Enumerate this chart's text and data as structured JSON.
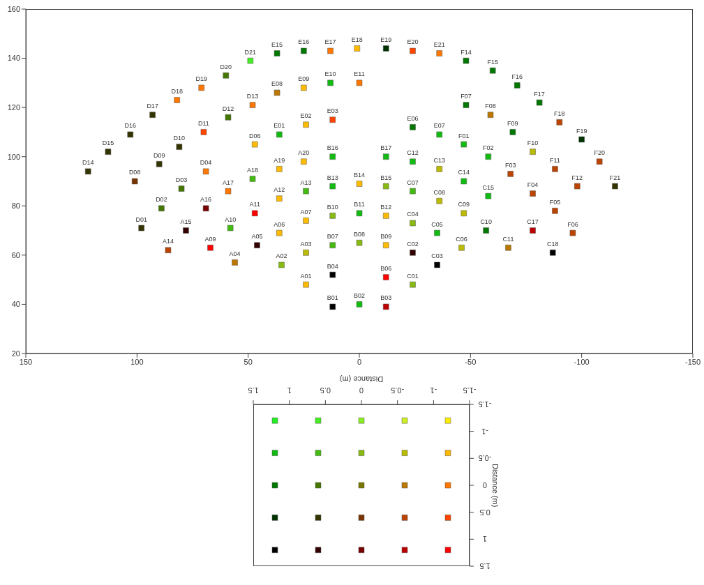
{
  "chart_data": [
    {
      "type": "scatter",
      "marker": "square",
      "xlim": [
        150,
        -150
      ],
      "xticks": [
        150,
        100,
        50,
        0,
        -50,
        -100,
        -150
      ],
      "ylim": [
        20,
        160
      ],
      "yticks": [
        20,
        40,
        60,
        80,
        100,
        120,
        140,
        160
      ],
      "value_labels": [
        "A01",
        "A02",
        "A03",
        "A04",
        "A05",
        "A06",
        "A07",
        "A09",
        "A10",
        "A11",
        "A12",
        "A13",
        "A14",
        "A15",
        "A16",
        "A17",
        "A18",
        "A19",
        "A20",
        "B01",
        "B02",
        "B03",
        "B04",
        "B06",
        "B07",
        "B08",
        "B09",
        "B10",
        "B11",
        "B12",
        "B13",
        "B14",
        "B15",
        "B16",
        "B17",
        "C01",
        "C02",
        "C03",
        "C04",
        "C05",
        "C06",
        "C07",
        "C08",
        "C09",
        "C10",
        "C11",
        "C12",
        "C13",
        "C14",
        "C15",
        "C17",
        "C18",
        "D01",
        "D02",
        "D03",
        "D04",
        "D06",
        "D08",
        "D09",
        "D10",
        "D11",
        "D12",
        "D13",
        "D14",
        "D15",
        "D16",
        "D17",
        "D18",
        "D19",
        "D20",
        "D21",
        "E01",
        "E02",
        "E03",
        "E06",
        "E07",
        "E08",
        "E09",
        "E10",
        "E11",
        "E15",
        "E16",
        "E17",
        "E18",
        "E19",
        "E20",
        "E21",
        "F01",
        "F02",
        "F03",
        "F04",
        "F05",
        "F06",
        "F07",
        "F08",
        "F09",
        "F10",
        "F11",
        "F12",
        "F14",
        "F15",
        "F16",
        "F17",
        "F18",
        "F19",
        "F20",
        "F21"
      ],
      "x": [
        24,
        35,
        24,
        56,
        46,
        36,
        24,
        67,
        58,
        47,
        36,
        24,
        86,
        78,
        69,
        59,
        48,
        36,
        25,
        12,
        0,
        -12,
        12,
        -12,
        12,
        0,
        -12,
        12,
        0,
        -12,
        12,
        0,
        -12,
        12,
        -12,
        -24,
        -24,
        -35,
        -24,
        -35,
        -46,
        -24,
        -36,
        -47,
        -57,
        -67,
        -24,
        -36,
        -47,
        -58,
        -78,
        -87,
        98,
        89,
        80,
        69,
        47,
        101,
        90,
        81,
        70,
        59,
        48,
        122,
        113,
        103,
        93,
        82,
        71,
        60,
        49,
        36,
        24,
        12,
        -24,
        -36,
        37,
        25,
        13,
        0,
        37,
        25,
        13,
        1,
        -12,
        -24,
        -36,
        -47,
        -58,
        -68,
        -78,
        -88,
        -96,
        -48,
        -59,
        -69,
        -78,
        -88,
        -98,
        -48,
        -60,
        -71,
        -81,
        -90,
        -100,
        -108,
        -115
      ],
      "values": [
        48,
        56,
        61,
        57,
        64,
        69,
        74,
        63,
        71,
        77,
        83,
        86,
        62,
        70,
        79,
        86,
        91,
        95,
        98,
        39,
        40,
        39,
        52,
        51,
        64,
        65,
        64,
        76,
        77,
        76,
        88,
        89,
        88,
        100,
        100,
        48,
        61,
        56,
        73,
        69,
        63,
        86,
        82,
        77,
        70,
        63,
        98,
        95,
        90,
        84,
        70,
        61,
        71,
        79,
        87,
        94,
        105,
        90,
        97,
        104,
        110,
        116,
        121,
        94,
        102,
        109,
        117,
        123,
        128,
        133,
        139,
        109,
        113,
        115,
        112,
        109,
        126,
        128,
        130,
        130,
        142,
        143,
        143,
        144,
        144,
        143,
        142,
        105,
        100,
        93,
        85,
        78,
        69,
        121,
        117,
        110,
        102,
        95,
        88,
        139,
        135,
        129,
        122,
        114,
        107,
        98,
        88
      ],
      "colors": [
        "#ffbb00",
        "#88bb11",
        "#bbbb00",
        "#bb7700",
        "#330000",
        "#ffbb00",
        "#ffbb00",
        "#ff0000",
        "#44bb11",
        "#ff0000",
        "#ffbb00",
        "#44bb11",
        "#bb4400",
        "#330000",
        "#770000",
        "#ff7700",
        "#44bb11",
        "#ffbb00",
        "#ffbb00",
        "#000000",
        "#11bb11",
        "#bb0000",
        "#000000",
        "#ff0000",
        "#44bb11",
        "#88bb11",
        "#ffbb00",
        "#88bb11",
        "#11bb11",
        "#ffbb00",
        "#11bb11",
        "#ffbb00",
        "#88bb11",
        "#11bb11",
        "#11bb11",
        "#88bb11",
        "#330000",
        "#000000",
        "#88bb11",
        "#11bb11",
        "#bbbb00",
        "#44bb11",
        "#bbbb00",
        "#bbbb00",
        "#007700",
        "#bb7700",
        "#11bb11",
        "#bbbb00",
        "#11bb11",
        "#11bb11",
        "#bb0000",
        "#000000",
        "#333300",
        "#447700",
        "#447700",
        "#ff7700",
        "#ffbb00",
        "#773300",
        "#333300",
        "#333300",
        "#ff4400",
        "#447700",
        "#ff7700",
        "#333300",
        "#333300",
        "#333300",
        "#333300",
        "#ff7700",
        "#ff7700",
        "#447700",
        "#44ee22",
        "#11bb11",
        "#ffbb00",
        "#ff4400",
        "#007700",
        "#11bb11",
        "#bb7700",
        "#ffbb00",
        "#11bb11",
        "#ff7700",
        "#007700",
        "#007700",
        "#ff7700",
        "#ffbb00",
        "#003300",
        "#ff4400",
        "#ff7700",
        "#11bb11",
        "#11bb11",
        "#bb4400",
        "#bb4400",
        "#bb4400",
        "#bb4400",
        "#007700",
        "#bb7700",
        "#007700",
        "#bbbb00",
        "#bb4400",
        "#bb4400",
        "#007700",
        "#007700",
        "#007700",
        "#007700",
        "#bb4400",
        "#003300",
        "#bb4400",
        "#333300"
      ]
    },
    {
      "type": "scatter",
      "marker": "square",
      "xlabel": "Distance (m)",
      "ylabel": "Distance (m)",
      "xlim": [
        1.5,
        -1.5
      ],
      "xticks": [
        -1.5,
        -1,
        -0.5,
        0,
        0.5,
        1,
        1.5
      ],
      "ylim": [
        1.5,
        -1.5
      ],
      "yticks": [
        -1.5,
        -1,
        -0.5,
        0,
        0.5,
        1,
        1.5
      ],
      "x": [
        1.2,
        0.6,
        0,
        -0.6,
        -1.2,
        1.2,
        0.6,
        0,
        -0.6,
        -1.2,
        1.2,
        0.6,
        0,
        -0.6,
        -1.2,
        1.2,
        0.6,
        0,
        -0.6,
        -1.2,
        1.2,
        0.6,
        0,
        -0.6,
        -1.2
      ],
      "values": [
        -1.2,
        -1.2,
        -1.2,
        -1.2,
        -1.2,
        -0.6,
        -0.6,
        -0.6,
        -0.6,
        -0.6,
        0,
        0,
        0,
        0,
        0,
        0.6,
        0.6,
        0.6,
        0.6,
        0.6,
        1.2,
        1.2,
        1.2,
        1.2,
        1.2
      ],
      "colors": [
        "#22ee22",
        "#44ee22",
        "#88ee22",
        "#ccee22",
        "#ffee00",
        "#11bb11",
        "#44bb11",
        "#88bb11",
        "#bbbb00",
        "#ffbb00",
        "#007700",
        "#447700",
        "#777700",
        "#bb7700",
        "#ff7700",
        "#003300",
        "#333300",
        "#773300",
        "#bb4400",
        "#ff4400",
        "#000000",
        "#330000",
        "#770000",
        "#bb0000",
        "#ff0000"
      ]
    }
  ]
}
